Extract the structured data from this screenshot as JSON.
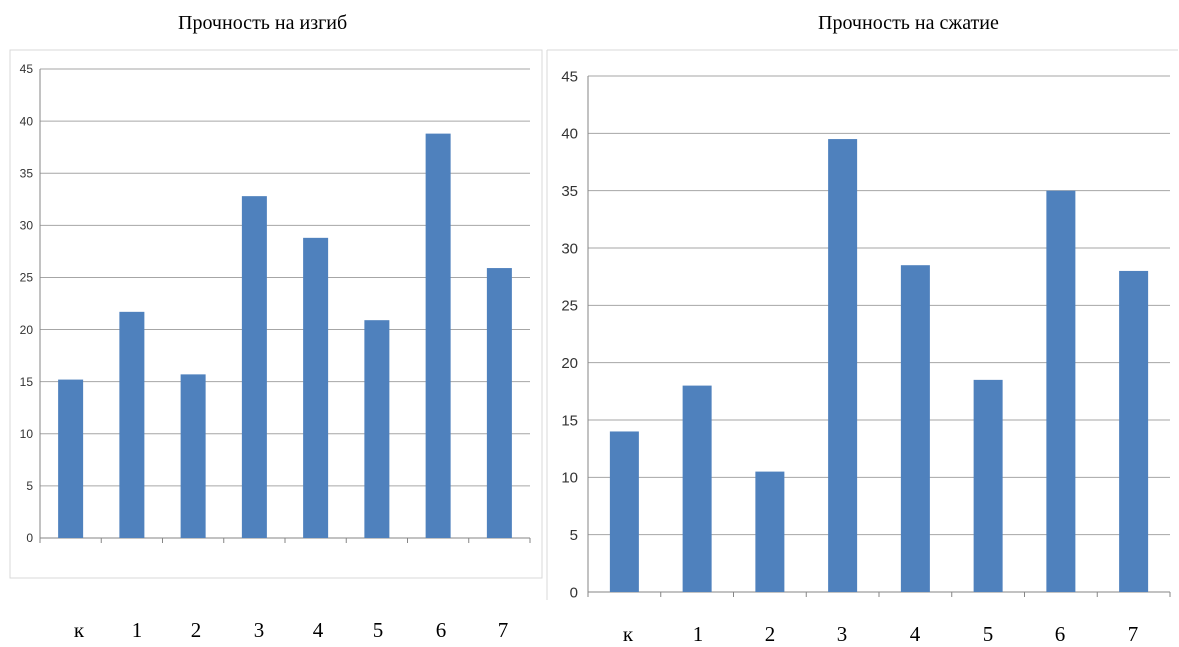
{
  "colors": {
    "bar": "#4f81bd",
    "grid": "#a6a6a6",
    "axis": "#868686",
    "frame": "#d9d9d9"
  },
  "chart_data": [
    {
      "type": "bar",
      "title": "Прочность на изгиб",
      "categories": [
        "к",
        "1",
        "2",
        "3",
        "4",
        "5",
        "6",
        "7"
      ],
      "values": [
        15.2,
        21.7,
        15.7,
        32.8,
        28.8,
        20.9,
        38.8,
        25.9
      ],
      "ylim": [
        0,
        45
      ],
      "yticks": [
        0,
        5,
        10,
        15,
        20,
        25,
        30,
        35,
        40,
        45
      ],
      "grid": true,
      "xlabel": "",
      "ylabel": ""
    },
    {
      "type": "bar",
      "title": "Прочность на сжатие",
      "categories": [
        "к",
        "1",
        "2",
        "3",
        "4",
        "5",
        "6",
        "7"
      ],
      "values": [
        14.0,
        18.0,
        10.5,
        39.5,
        28.5,
        18.5,
        35.0,
        28.0
      ],
      "ylim": [
        0,
        45
      ],
      "yticks": [
        0,
        5,
        10,
        15,
        20,
        25,
        30,
        35,
        40,
        45
      ],
      "grid": true,
      "xlabel": "",
      "ylabel": ""
    }
  ]
}
